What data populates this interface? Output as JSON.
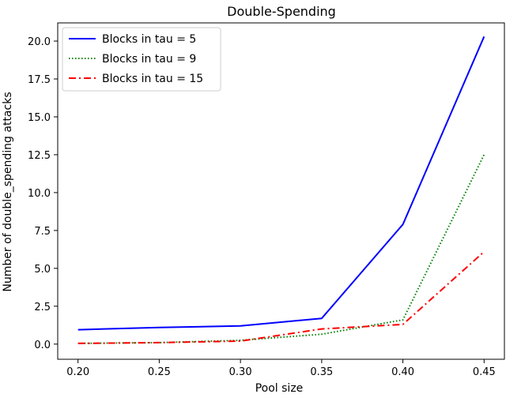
{
  "chart_data": {
    "type": "line",
    "title": "Double-Spending",
    "xlabel": "Pool size",
    "ylabel": "Number of double_spending attacks",
    "x": [
      0.2,
      0.25,
      0.3,
      0.35,
      0.4,
      0.45
    ],
    "x_tick_labels": [
      "0.20",
      "0.25",
      "0.30",
      "0.35",
      "0.40",
      "0.45"
    ],
    "y_ticks": [
      0.0,
      2.5,
      5.0,
      7.5,
      10.0,
      12.5,
      15.0,
      17.5,
      20.0
    ],
    "y_tick_labels": [
      "0.0",
      "2.5",
      "5.0",
      "7.5",
      "10.0",
      "12.5",
      "15.0",
      "17.5",
      "20.0"
    ],
    "xlim": [
      0.1875,
      0.4625
    ],
    "ylim": [
      -1.0,
      21.2
    ],
    "grid": false,
    "legend_position": "upper-left",
    "series": [
      {
        "name": "Blocks in tau = 5",
        "color": "#0000ff",
        "style": "solid",
        "values": [
          0.95,
          1.1,
          1.2,
          1.7,
          7.9,
          20.3
        ]
      },
      {
        "name": "Blocks in tau = 9",
        "color": "#008000",
        "style": "dotted",
        "values": [
          0.05,
          0.1,
          0.25,
          0.65,
          1.6,
          12.5
        ]
      },
      {
        "name": "Blocks in tau = 15",
        "color": "#ff0000",
        "style": "dashdot",
        "values": [
          0.05,
          0.1,
          0.2,
          1.0,
          1.3,
          6.1
        ]
      }
    ]
  }
}
